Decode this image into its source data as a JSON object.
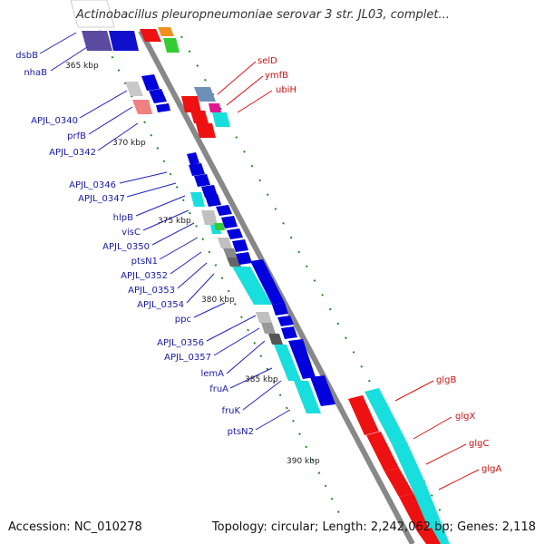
{
  "title": "Actinobacillus pleuropneumoniae serovar 3 str. JL03, complet...",
  "footer": {
    "accession": "Accession: NC_010278",
    "summary": "Topology: circular; Length: 2,242,062 bp; Genes: 2,118"
  },
  "ticks": [
    "365 kbp",
    "370 kbp",
    "375 kbp",
    "380 kbp",
    "385 kbp",
    "390 kbp"
  ],
  "genes_left": [
    "dsbB",
    "nhaB",
    "APJL_0340",
    "prfB",
    "APJL_0342",
    "APJL_0346",
    "APJL_0347",
    "hlpB",
    "visC",
    "APJL_0350",
    "ptsN1",
    "APJL_0352",
    "APJL_0353",
    "APJL_0354",
    "ppc",
    "APJL_0356",
    "APJL_0357",
    "lemA",
    "fruA",
    "fruK",
    "ptsN2"
  ],
  "genes_right": [
    "selD",
    "ymfB",
    "ubiH",
    "glgB",
    "glgX",
    "glgC",
    "glgA"
  ],
  "colors": {
    "forward": "#0000dd",
    "reverse": "#ee1111",
    "backbone": "#888888",
    "cyan": "#19dede",
    "label_left": "#1a1aa8",
    "label_right": "#cc1111"
  }
}
